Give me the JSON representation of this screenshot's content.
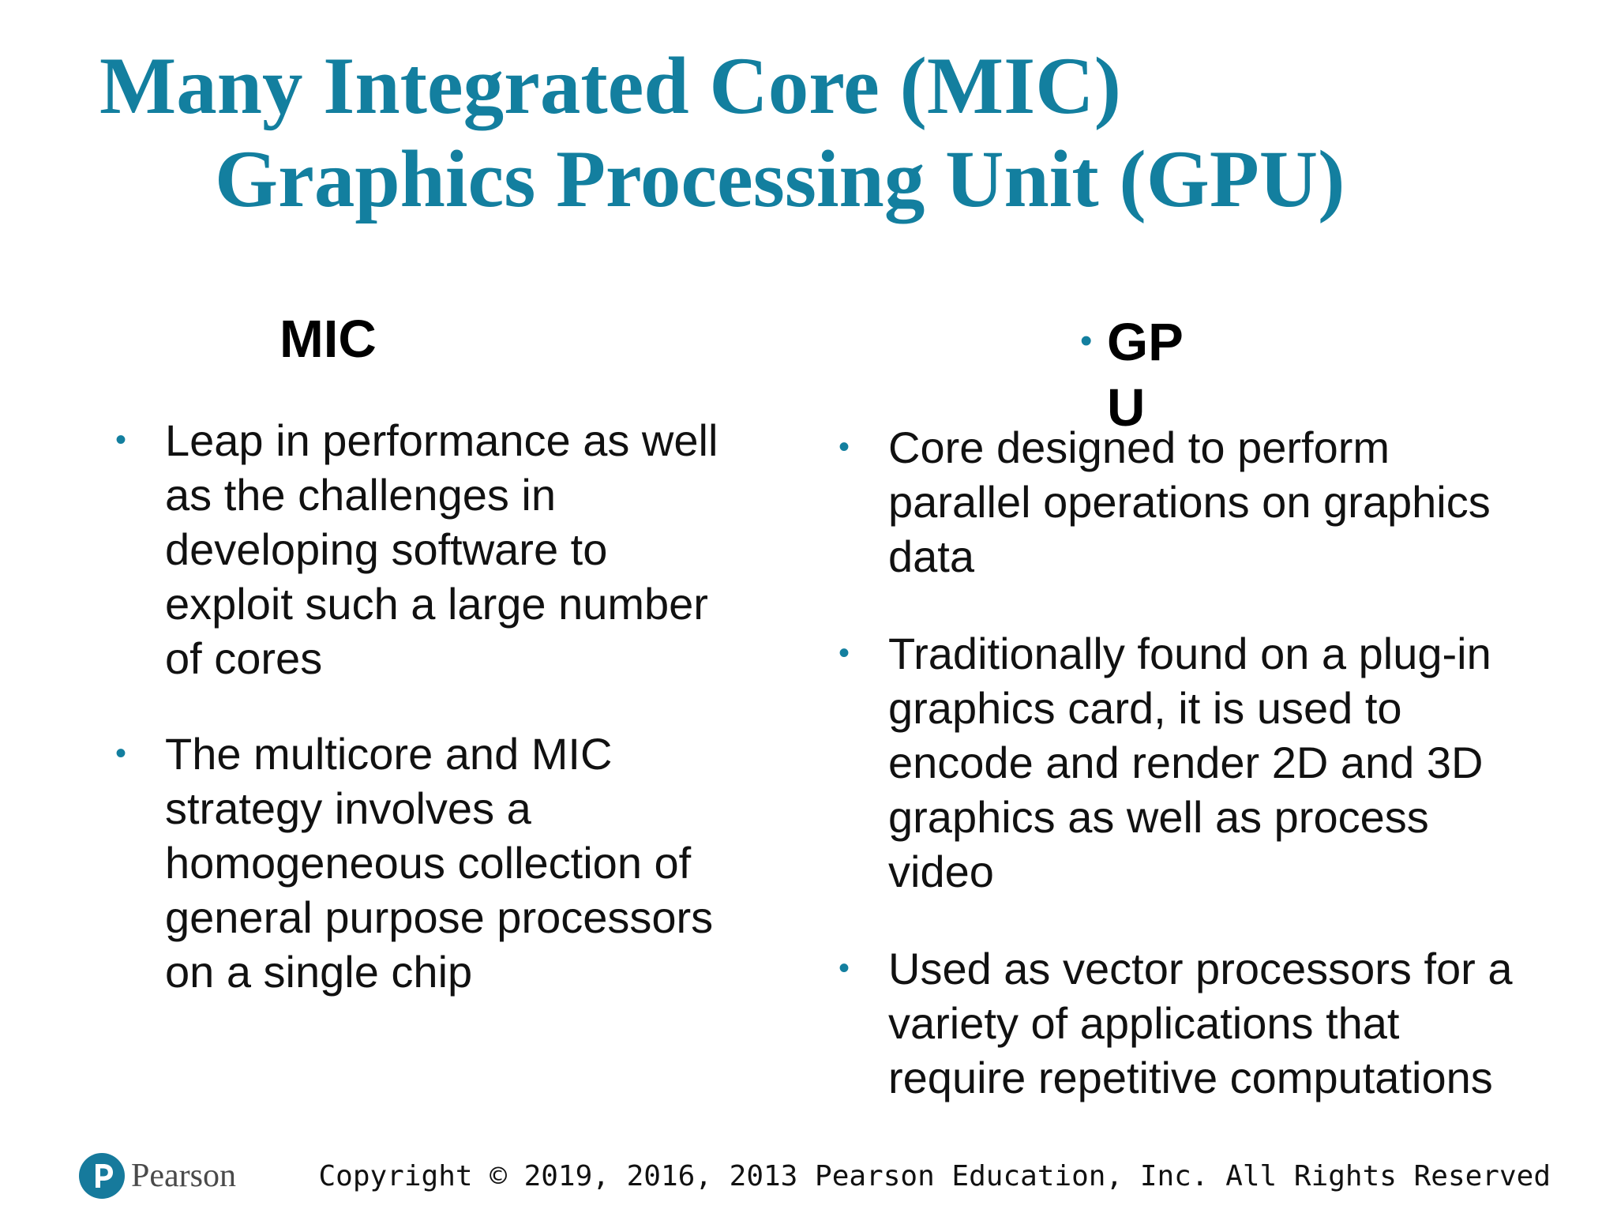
{
  "slide": {
    "title_line_1": "Many Integrated Core (MIC)",
    "title_line_2": "Graphics Processing Unit (GPU)",
    "mic": {
      "heading": "MIC",
      "bullets": [
        "Leap in performance as well as the challenges in developing software to exploit such a large number of cores",
        "The multicore and MIC strategy involves a homogeneous collection of general purpose processors on a single chip"
      ]
    },
    "gpu": {
      "heading": "GPU",
      "bullets": [
        "Core designed to perform parallel operations on graphics data",
        "Traditionally found on a plug-in graphics card, it is used to encode and render 2D and 3D graphics as well as process video",
        "Used as vector processors for a variety of applications that require repetitive computations"
      ]
    },
    "bullet_glyph": "•"
  },
  "footer": {
    "logo_text": "Pearson",
    "logo_icon": "pearson-p-icon",
    "copyright": "Copyright © 2019, 2016, 2013 Pearson Education, Inc. All Rights Reserved"
  },
  "colors": {
    "title": "#137f9f",
    "bullet": "#137f9f",
    "text": "#111111",
    "logo_mark": "#167a9c"
  }
}
